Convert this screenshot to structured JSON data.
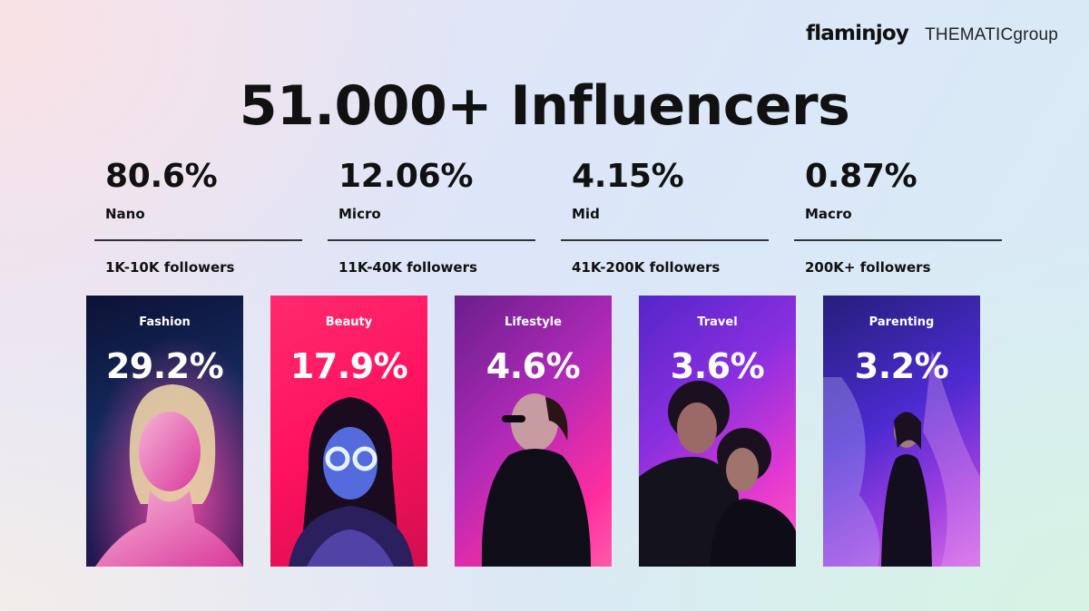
{
  "brand": {
    "logo_primary": "flaminjoy",
    "logo_secondary": "THEMATICgroup"
  },
  "title": "51.000+ Influencers",
  "tiers": [
    {
      "percent": "80.6%",
      "name": "Nano",
      "followers": "1K-10K followers"
    },
    {
      "percent": "12.06%",
      "name": "Micro",
      "followers": "11K-40K followers"
    },
    {
      "percent": "4.15%",
      "name": "Mid",
      "followers": "41K-200K followers"
    },
    {
      "percent": "0.87%",
      "name": "Macro",
      "followers": "200K+ followers"
    }
  ],
  "categories": [
    {
      "name": "Fashion",
      "share": "29.2%",
      "colors": [
        "#10163a",
        "#ff2d9c"
      ]
    },
    {
      "name": "Beauty",
      "share": "17.9%",
      "colors": [
        "#ff1a6e",
        "#c0164c"
      ]
    },
    {
      "name": "Lifestyle",
      "share": "4.6%",
      "colors": [
        "#7a1f8e",
        "#ff2fa8"
      ]
    },
    {
      "name": "Travel",
      "share": "3.6%",
      "colors": [
        "#6a2bd8",
        "#ff3ccf"
      ]
    },
    {
      "name": "Parenting",
      "share": "3.2%",
      "colors": [
        "#2a2a9c",
        "#c04be0"
      ]
    }
  ]
}
